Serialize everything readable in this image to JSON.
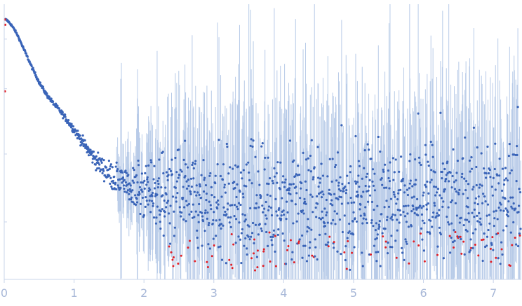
{
  "chart_data": {
    "type": "scatter",
    "title": "",
    "xlabel": "",
    "ylabel": "",
    "xlim": [
      0,
      7.4
    ],
    "ylim": [
      0,
      1
    ],
    "y_scale": "log",
    "grid": false,
    "legend": "none",
    "x_ticks": [
      {
        "value": 0,
        "label": "0"
      },
      {
        "value": 1,
        "label": "1"
      },
      {
        "value": 2,
        "label": "2"
      },
      {
        "value": 3,
        "label": "3"
      },
      {
        "value": 4,
        "label": "4"
      },
      {
        "value": 5,
        "label": "5"
      },
      {
        "value": 6,
        "label": "6"
      },
      {
        "value": 7,
        "label": "7"
      }
    ],
    "y_ticks": [
      0.92,
      0.73,
      0.48,
      0.22
    ],
    "colors": {
      "points": "#3a64b8",
      "outliers": "#e21f26",
      "error_bars": "#b8cbe8",
      "axis": "#c9d4ea",
      "tick_labels": "#a8b8d8"
    },
    "series": [
      {
        "kind": "profile",
        "x": [
          0.02,
          0.05,
          0.1,
          0.15,
          0.2,
          0.3,
          0.4,
          0.5,
          0.6,
          0.7,
          0.8,
          0.9,
          1.0,
          1.1,
          1.2,
          1.3,
          1.4,
          1.5,
          1.6,
          1.7,
          1.8,
          1.9,
          2.0,
          2.2,
          2.4,
          2.6,
          2.8,
          3.0,
          3.5,
          4.0,
          4.5,
          5.0,
          5.5,
          6.0,
          6.5,
          7.0,
          7.4
        ],
        "y": [
          0.995,
          0.99,
          0.975,
          0.955,
          0.93,
          0.87,
          0.81,
          0.755,
          0.71,
          0.675,
          0.645,
          0.61,
          0.575,
          0.535,
          0.495,
          0.46,
          0.43,
          0.405,
          0.385,
          0.37,
          0.355,
          0.345,
          0.335,
          0.325,
          0.315,
          0.31,
          0.305,
          0.3,
          0.3,
          0.3,
          0.3,
          0.3,
          0.3,
          0.3,
          0.305,
          0.31,
          0.31
        ],
        "spread": [
          0.002,
          0.002,
          0.002,
          0.002,
          0.002,
          0.003,
          0.003,
          0.003,
          0.004,
          0.004,
          0.005,
          0.006,
          0.008,
          0.01,
          0.013,
          0.016,
          0.02,
          0.025,
          0.03,
          0.036,
          0.045,
          0.055,
          0.065,
          0.075,
          0.085,
          0.09,
          0.095,
          0.1,
          0.105,
          0.11,
          0.11,
          0.11,
          0.11,
          0.11,
          0.115,
          0.12,
          0.13
        ]
      }
    ],
    "outliers_start_x": 2.3
  }
}
